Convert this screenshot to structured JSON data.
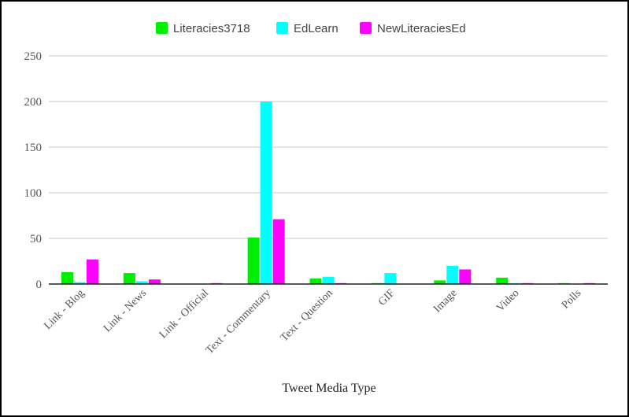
{
  "chart_data": {
    "type": "bar",
    "title": "",
    "xlabel": "Tweet Media Type",
    "ylabel": "",
    "ylim": [
      0,
      250
    ],
    "yticks": [
      0,
      50,
      100,
      150,
      200,
      250
    ],
    "grid": true,
    "legend_position": "top-center",
    "categories": [
      "Link - Blog",
      "Link - News",
      "Link - Official",
      "Text - Commentary",
      "Text - Question",
      "GIF",
      "Image",
      "Video",
      "Polls"
    ],
    "series": [
      {
        "name": "Literacies3718",
        "color": "#00ee00",
        "values": [
          13,
          12,
          0,
          51,
          6,
          1,
          4,
          7,
          1
        ]
      },
      {
        "name": "EdLearn",
        "color": "#00ffff",
        "values": [
          2,
          3,
          0,
          200,
          8,
          12,
          20,
          1,
          0
        ]
      },
      {
        "name": "NewLiteraciesEd",
        "color": "#ff00ff",
        "values": [
          27,
          5,
          1,
          71,
          1,
          0,
          16,
          1,
          1
        ]
      }
    ]
  }
}
